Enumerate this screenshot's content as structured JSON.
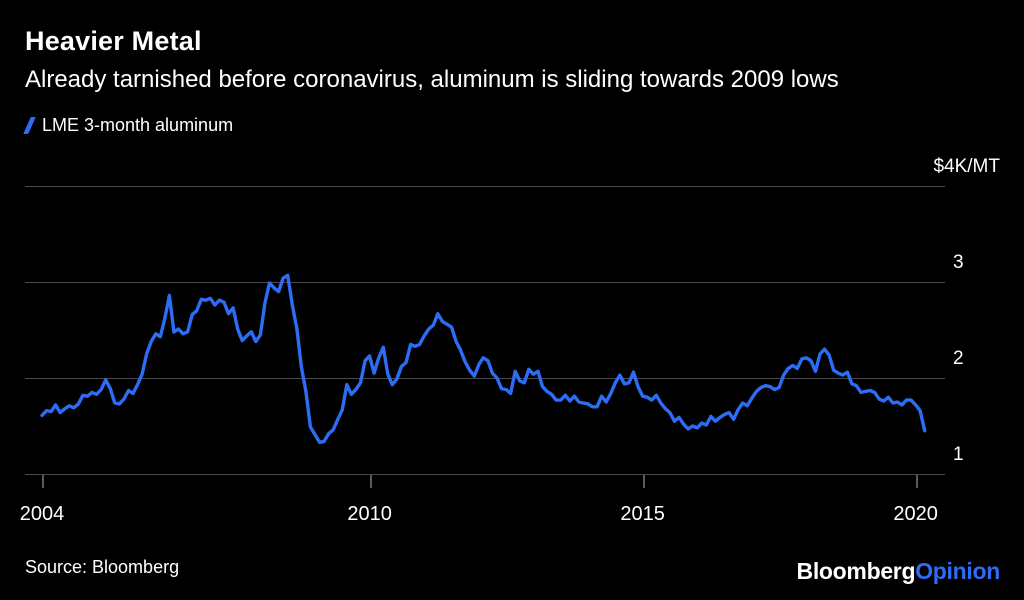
{
  "colors": {
    "background": "#000000",
    "accent_blue": "#2D6DF6",
    "gridline_gray": "#4A4A4A",
    "text_white": "#FFFFFF"
  },
  "header": {
    "title": "Heavier Metal",
    "subtitle": "Already tarnished before coronavirus, aluminum is sliding towards 2009 lows"
  },
  "legend": {
    "label": "LME 3-month aluminum"
  },
  "footer": {
    "source": "Source: Bloomberg",
    "logo_primary": "Bloomberg",
    "logo_secondary": "Opinion"
  },
  "chart_data": {
    "type": "line",
    "title": "Heavier Metal",
    "unit": "$K/MT",
    "grid": "horizontal",
    "legend_position": "top-left",
    "ylim": [
      0.9,
      4.2
    ],
    "y_ticks": [
      {
        "value": 4,
        "label": "$4K/MT"
      },
      {
        "value": 3,
        "label": "3"
      },
      {
        "value": 2,
        "label": "2"
      },
      {
        "value": 1,
        "label": "1"
      }
    ],
    "x_ticks": [
      {
        "year": 2004,
        "label": "2004"
      },
      {
        "year": 2010,
        "label": "2010"
      },
      {
        "year": 2015,
        "label": "2015"
      },
      {
        "year": 2020,
        "label": "2020"
      }
    ],
    "series": [
      {
        "name": "LME 3-month aluminum",
        "color": "#2D6DF6",
        "x_start": "2004-01",
        "frequency": "monthly",
        "values": [
          1.61,
          1.66,
          1.65,
          1.72,
          1.64,
          1.68,
          1.71,
          1.69,
          1.73,
          1.82,
          1.81,
          1.85,
          1.83,
          1.88,
          1.98,
          1.89,
          1.74,
          1.73,
          1.78,
          1.87,
          1.84,
          1.93,
          2.04,
          2.25,
          2.38,
          2.46,
          2.43,
          2.62,
          2.86,
          2.48,
          2.51,
          2.46,
          2.48,
          2.66,
          2.7,
          2.82,
          2.81,
          2.83,
          2.76,
          2.81,
          2.79,
          2.67,
          2.73,
          2.51,
          2.39,
          2.44,
          2.48,
          2.38,
          2.45,
          2.78,
          2.99,
          2.94,
          2.9,
          3.04,
          3.07,
          2.76,
          2.52,
          2.12,
          1.86,
          1.49,
          1.41,
          1.33,
          1.34,
          1.42,
          1.46,
          1.57,
          1.67,
          1.93,
          1.83,
          1.88,
          1.95,
          2.18,
          2.23,
          2.05,
          2.21,
          2.32,
          2.04,
          1.93,
          1.99,
          2.12,
          2.16,
          2.35,
          2.33,
          2.35,
          2.44,
          2.51,
          2.55,
          2.67,
          2.59,
          2.56,
          2.53,
          2.38,
          2.29,
          2.17,
          2.08,
          2.02,
          2.14,
          2.21,
          2.18,
          2.05,
          2.0,
          1.89,
          1.88,
          1.84,
          2.07,
          1.97,
          1.95,
          2.09,
          2.04,
          2.07,
          1.91,
          1.86,
          1.83,
          1.77,
          1.77,
          1.82,
          1.76,
          1.81,
          1.75,
          1.74,
          1.73,
          1.7,
          1.7,
          1.81,
          1.75,
          1.84,
          1.95,
          2.03,
          1.94,
          1.95,
          2.06,
          1.91,
          1.81,
          1.8,
          1.77,
          1.82,
          1.74,
          1.68,
          1.64,
          1.55,
          1.59,
          1.52,
          1.47,
          1.5,
          1.48,
          1.53,
          1.51,
          1.6,
          1.55,
          1.59,
          1.62,
          1.64,
          1.57,
          1.67,
          1.74,
          1.71,
          1.79,
          1.86,
          1.9,
          1.92,
          1.91,
          1.88,
          1.9,
          2.03,
          2.1,
          2.13,
          2.1,
          2.2,
          2.21,
          2.18,
          2.07,
          2.25,
          2.3,
          2.24,
          2.08,
          2.05,
          2.03,
          2.06,
          1.94,
          1.92,
          1.85,
          1.86,
          1.87,
          1.85,
          1.78,
          1.76,
          1.8,
          1.74,
          1.75,
          1.72,
          1.77,
          1.77,
          1.72,
          1.66,
          1.45
        ]
      }
    ]
  }
}
